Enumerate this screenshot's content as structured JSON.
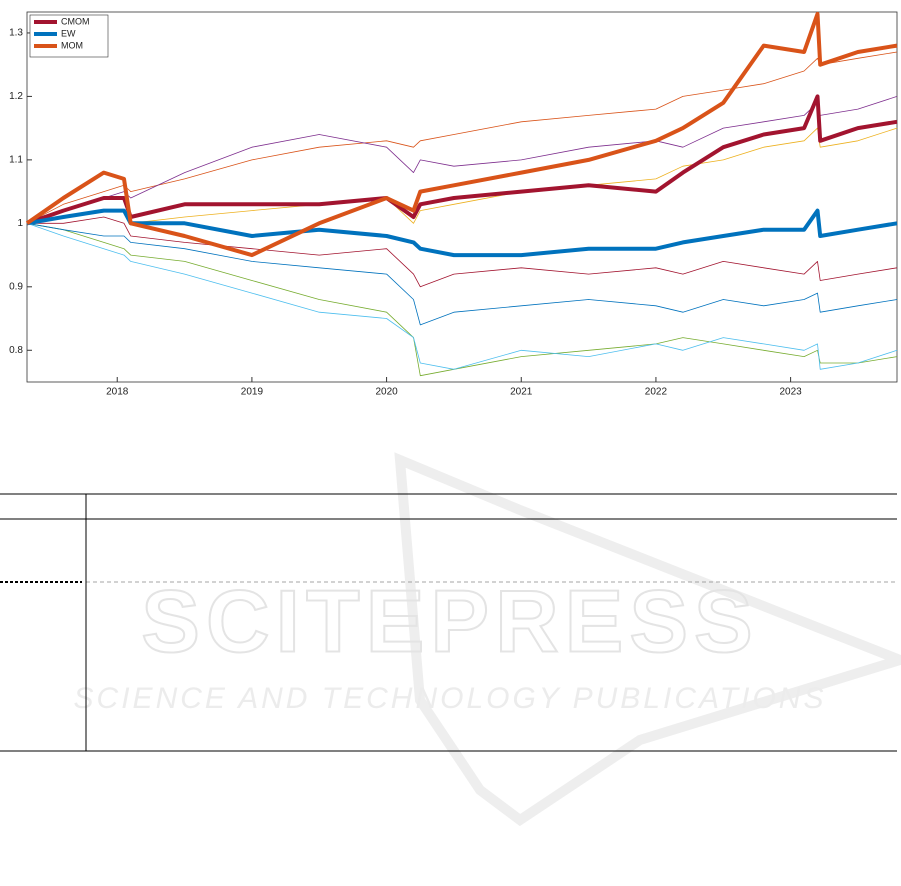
{
  "chart_data": {
    "type": "line",
    "x": [
      2017.33,
      2017.6,
      2017.9,
      2018.05,
      2018.1,
      2018.5,
      2019.0,
      2019.5,
      2020.0,
      2020.2,
      2020.25,
      2020.5,
      2021.0,
      2021.5,
      2022.0,
      2022.2,
      2022.5,
      2022.8,
      2023.1,
      2023.2,
      2023.22,
      2023.5,
      2023.79
    ],
    "xlim": [
      2017.33,
      2023.79
    ],
    "xticks": [
      2018,
      2019,
      2020,
      2021,
      2022,
      2023
    ],
    "ylim": [
      0.75,
      1.333
    ],
    "yticks": [
      0.8,
      0.9,
      1,
      1.1,
      1.2,
      1.3
    ],
    "legend": "upper left",
    "series": [
      {
        "color": "#d95319",
        "values": [
          1.0,
          1.03,
          1.05,
          1.06,
          1.05,
          1.07,
          1.1,
          1.12,
          1.13,
          1.12,
          1.13,
          1.14,
          1.16,
          1.17,
          1.18,
          1.2,
          1.21,
          1.22,
          1.24,
          1.26,
          1.25,
          1.26,
          1.27
        ]
      },
      {
        "color": "#7e2f8e",
        "values": [
          1.0,
          1.02,
          1.04,
          1.05,
          1.04,
          1.08,
          1.12,
          1.14,
          1.12,
          1.08,
          1.1,
          1.09,
          1.1,
          1.12,
          1.13,
          1.12,
          1.15,
          1.16,
          1.17,
          1.19,
          1.17,
          1.18,
          1.2
        ]
      },
      {
        "color": "#77ac30",
        "values": [
          1.0,
          0.99,
          0.97,
          0.96,
          0.95,
          0.94,
          0.91,
          0.88,
          0.86,
          0.82,
          0.76,
          0.77,
          0.79,
          0.8,
          0.81,
          0.82,
          0.81,
          0.8,
          0.79,
          0.8,
          0.78,
          0.78,
          0.79
        ]
      },
      {
        "color": "#4dbeee",
        "values": [
          1.0,
          0.98,
          0.96,
          0.95,
          0.94,
          0.92,
          0.89,
          0.86,
          0.85,
          0.82,
          0.78,
          0.77,
          0.8,
          0.79,
          0.81,
          0.8,
          0.82,
          0.81,
          0.8,
          0.81,
          0.77,
          0.78,
          0.8
        ]
      },
      {
        "color": "#edb120",
        "values": [
          1.0,
          1.01,
          1.02,
          1.02,
          1.0,
          1.01,
          1.02,
          1.03,
          1.04,
          1.0,
          1.02,
          1.03,
          1.05,
          1.06,
          1.07,
          1.09,
          1.1,
          1.12,
          1.13,
          1.15,
          1.12,
          1.13,
          1.15
        ]
      },
      {
        "color": "#0072bd",
        "values": [
          1.0,
          0.99,
          0.98,
          0.98,
          0.97,
          0.96,
          0.94,
          0.93,
          0.92,
          0.88,
          0.84,
          0.86,
          0.87,
          0.88,
          0.87,
          0.86,
          0.88,
          0.87,
          0.88,
          0.89,
          0.86,
          0.87,
          0.88
        ]
      },
      {
        "color": "#a2142f",
        "values": [
          1.0,
          1.0,
          1.01,
          1.0,
          0.98,
          0.97,
          0.96,
          0.95,
          0.96,
          0.92,
          0.9,
          0.92,
          0.93,
          0.92,
          0.93,
          0.92,
          0.94,
          0.93,
          0.92,
          0.94,
          0.91,
          0.92,
          0.93
        ]
      },
      {
        "name": "CMOM",
        "color": "#a2142f",
        "width": 4,
        "values": [
          1.0,
          1.02,
          1.04,
          1.04,
          1.01,
          1.03,
          1.03,
          1.03,
          1.04,
          1.01,
          1.03,
          1.04,
          1.05,
          1.06,
          1.05,
          1.08,
          1.12,
          1.14,
          1.15,
          1.2,
          1.13,
          1.15,
          1.16
        ]
      },
      {
        "name": "EW",
        "color": "#0072bd",
        "width": 4,
        "values": [
          1.0,
          1.01,
          1.02,
          1.02,
          1.0,
          1.0,
          0.98,
          0.99,
          0.98,
          0.97,
          0.96,
          0.95,
          0.95,
          0.96,
          0.96,
          0.97,
          0.98,
          0.99,
          0.99,
          1.02,
          0.98,
          0.99,
          1.0
        ]
      },
      {
        "name": "MOM",
        "color": "#d95319",
        "width": 4,
        "values": [
          1.0,
          1.04,
          1.08,
          1.07,
          1.0,
          0.98,
          0.95,
          1.0,
          1.04,
          1.02,
          1.05,
          1.06,
          1.08,
          1.1,
          1.13,
          1.15,
          1.19,
          1.28,
          1.27,
          1.33,
          1.25,
          1.27,
          1.28
        ]
      }
    ]
  },
  "watermark": {
    "title": "SCITEPRESS",
    "subtitle": "SCIENCE AND TECHNOLOGY PUBLICATIONS"
  }
}
